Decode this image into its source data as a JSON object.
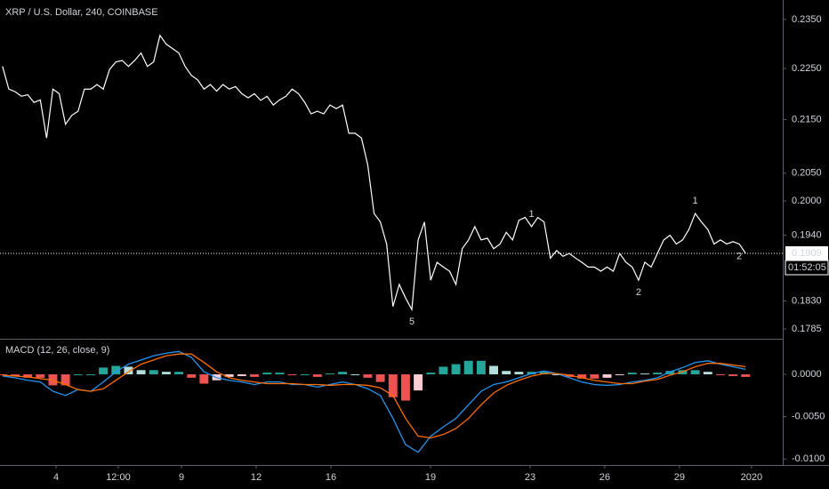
{
  "chart_data": [
    {
      "type": "line",
      "title": "XRP / U.S. Dollar, 240, COINBASE",
      "log_scale": true,
      "grid": false,
      "xlim": [
        -0.4,
        123.9
      ],
      "ylim": [
        0.1771,
        0.2391
      ],
      "yticks": [
        {
          "value": 0.235,
          "label": "0.2350"
        },
        {
          "value": 0.225,
          "label": "0.2250"
        },
        {
          "value": 0.215,
          "label": "0.2150"
        },
        {
          "value": 0.205,
          "label": "0.2050"
        },
        {
          "value": 0.2,
          "label": "0.2000"
        },
        {
          "value": 0.194,
          "label": "0.1940"
        },
        {
          "value": 0.183,
          "label": "0.1830"
        },
        0.1785
      ],
      "series": [
        {
          "color": "#ffffff",
          "values": [
            0.2254,
            0.2209,
            0.2204,
            0.2195,
            0.2198,
            0.2183,
            0.2188,
            0.2115,
            0.2209,
            0.22,
            0.2141,
            0.2158,
            0.2166,
            0.2209,
            0.2209,
            0.2218,
            0.2209,
            0.2248,
            0.2263,
            0.2266,
            0.2254,
            0.2266,
            0.2281,
            0.2254,
            0.2263,
            0.2317,
            0.2299,
            0.229,
            0.2281,
            0.2254,
            0.2236,
            0.2227,
            0.2209,
            0.2218,
            0.2205,
            0.2218,
            0.2209,
            0.2214,
            0.22,
            0.2192,
            0.22,
            0.2187,
            0.2195,
            0.2178,
            0.2188,
            0.2195,
            0.2209,
            0.22,
            0.2183,
            0.2161,
            0.2166,
            0.2161,
            0.2178,
            0.2171,
            0.2178,
            0.2124,
            0.2124,
            0.2115,
            0.2065,
            0.1978,
            0.1963,
            0.1925,
            0.1821,
            0.1857,
            0.1835,
            0.1816,
            0.1932,
            0.1963,
            0.1864,
            0.1894,
            0.1886,
            0.1879,
            0.1857,
            0.1917,
            0.1932,
            0.1955,
            0.1932,
            0.1935,
            0.1917,
            0.1925,
            0.1945,
            0.1932,
            0.1966,
            0.1971,
            0.1955,
            0.1971,
            0.1963,
            0.1901,
            0.1914,
            0.1904,
            0.1909,
            0.1901,
            0.1894,
            0.1886,
            0.1886,
            0.1879,
            0.1886,
            0.1879,
            0.1909,
            0.1894,
            0.1886,
            0.1864,
            0.1894,
            0.1886,
            0.1909,
            0.1932,
            0.194,
            0.1925,
            0.1932,
            0.195,
            0.1978,
            0.1963,
            0.195,
            0.1925,
            0.1932,
            0.1925,
            0.1929,
            0.1925,
            0.1909
          ]
        }
      ],
      "last_price": {
        "value": 0.1909,
        "label": "0.1909"
      },
      "countdown": "01:52:05",
      "annotations": [
        {
          "text": "1",
          "color": "#4caf50",
          "index": 84,
          "side": "above"
        },
        {
          "text": "2",
          "color": "#4caf50",
          "index": 101,
          "side": "below"
        },
        {
          "text": "5",
          "color": "#ef5350",
          "index": 65,
          "side": "below"
        },
        {
          "text": "1",
          "color": "#e040fb",
          "index": 110,
          "side": "above"
        },
        {
          "text": "2",
          "color": "#e040fb",
          "index": 117,
          "side": "below"
        }
      ]
    },
    {
      "type": "macd",
      "title": "MACD (12, 26, close, 9)",
      "grid": false,
      "xlim": [
        -0.2,
        61.95
      ],
      "ylim": [
        -0.0106,
        0.0041
      ],
      "yticks": [
        {
          "value": 0,
          "label": "0.0000"
        },
        {
          "value": -0.005,
          "label": "-0.0050"
        },
        {
          "value": -0.01,
          "label": "-0.0100"
        }
      ],
      "xticks": [
        {
          "value": 4.25,
          "label": "4"
        },
        {
          "value": 9.19,
          "label": "12:00"
        },
        {
          "value": 14.21,
          "label": "9"
        },
        {
          "value": 20.14,
          "label": "12"
        },
        {
          "value": 26.07,
          "label": "16"
        },
        {
          "value": 33.98,
          "label": "19"
        },
        {
          "value": 41.89,
          "label": "23"
        },
        {
          "value": 47.82,
          "label": "26"
        },
        {
          "value": 53.75,
          "label": "29"
        },
        {
          "value": 59.47,
          "label": "2020"
        }
      ],
      "histogram": {
        "colors": [
          "#26a69a",
          "#b2dfdb",
          "#ef5350",
          "#ffcdd2"
        ],
        "values": [
          -0.0001,
          -0.0002,
          -0.0004,
          -0.0004,
          -0.0013,
          -0.0013,
          0,
          0,
          0.0008,
          0.001,
          0.0009,
          0.0005,
          0.0005,
          0.0003,
          0.0003,
          -0.0004,
          -0.0011,
          -0.0007,
          -0.0003,
          -0.0002,
          -0.0003,
          0.0002,
          0.0002,
          -0.0001,
          0,
          -0.0003,
          0.0001,
          0.0003,
          0,
          -0.0004,
          -0.0009,
          -0.0027,
          -0.0031,
          -0.0019,
          0.0002,
          0.0009,
          0.0012,
          0.0016,
          0.0016,
          0.001,
          0.0004,
          0.0003,
          0.0003,
          0.0003,
          0,
          -0.0003,
          -0.0005,
          -0.0005,
          -0.0004,
          -0.0001,
          0.0002,
          0.0001,
          0.0002,
          0.0004,
          0.0005,
          0.0005,
          0.0003,
          -0.0001,
          -0.0002,
          -0.0003
        ]
      },
      "macd": {
        "color": "#2196f3",
        "values": [
          -0.0002,
          -0.0004,
          -0.0007,
          -0.0009,
          -0.002,
          -0.0025,
          -0.0018,
          -0.002,
          -0.0009,
          0.0003,
          0.0012,
          0.0017,
          0.0022,
          0.0025,
          0.0027,
          0.002,
          0.0003,
          -0.0004,
          -0.0007,
          -0.0009,
          -0.0012,
          -0.0009,
          -0.0009,
          -0.0012,
          -0.0012,
          -0.0015,
          -0.0012,
          -0.0009,
          -0.0012,
          -0.0017,
          -0.0025,
          -0.0052,
          -0.0083,
          -0.0092,
          -0.0073,
          -0.0062,
          -0.0052,
          -0.0036,
          -0.002,
          -0.0012,
          -0.0009,
          -0.0004,
          0.0001,
          0.0004,
          0.0001,
          -0.0004,
          -0.0009,
          -0.0012,
          -0.0013,
          -0.0012,
          -0.0009,
          -0.0007,
          -0.0004,
          0.0003,
          0.0008,
          0.0014,
          0.0016,
          0.0012,
          0.0009,
          0.0006
        ]
      },
      "signal": {
        "color": "#ff6d00",
        "values": [
          -0.0001,
          -0.0002,
          -0.0003,
          -0.0005,
          -0.0007,
          -0.0012,
          -0.0018,
          -0.002,
          -0.0017,
          -0.0007,
          0.0003,
          0.0012,
          0.0017,
          0.0022,
          0.0024,
          0.0024,
          0.0014,
          0.0003,
          -0.0004,
          -0.0007,
          -0.0009,
          -0.0011,
          -0.0011,
          -0.0011,
          -0.0012,
          -0.0012,
          -0.0013,
          -0.0012,
          -0.0012,
          -0.0013,
          -0.0016,
          -0.0025,
          -0.0052,
          -0.0073,
          -0.0075,
          -0.0071,
          -0.0064,
          -0.0052,
          -0.0036,
          -0.0022,
          -0.0013,
          -0.0007,
          -0.0002,
          0.0001,
          0.0001,
          -0.0001,
          -0.0004,
          -0.0007,
          -0.0009,
          -0.0011,
          -0.0011,
          -0.0008,
          -0.0006,
          -0.0001,
          0.0003,
          0.0009,
          0.0013,
          0.0013,
          0.0011,
          0.0009
        ]
      }
    }
  ]
}
